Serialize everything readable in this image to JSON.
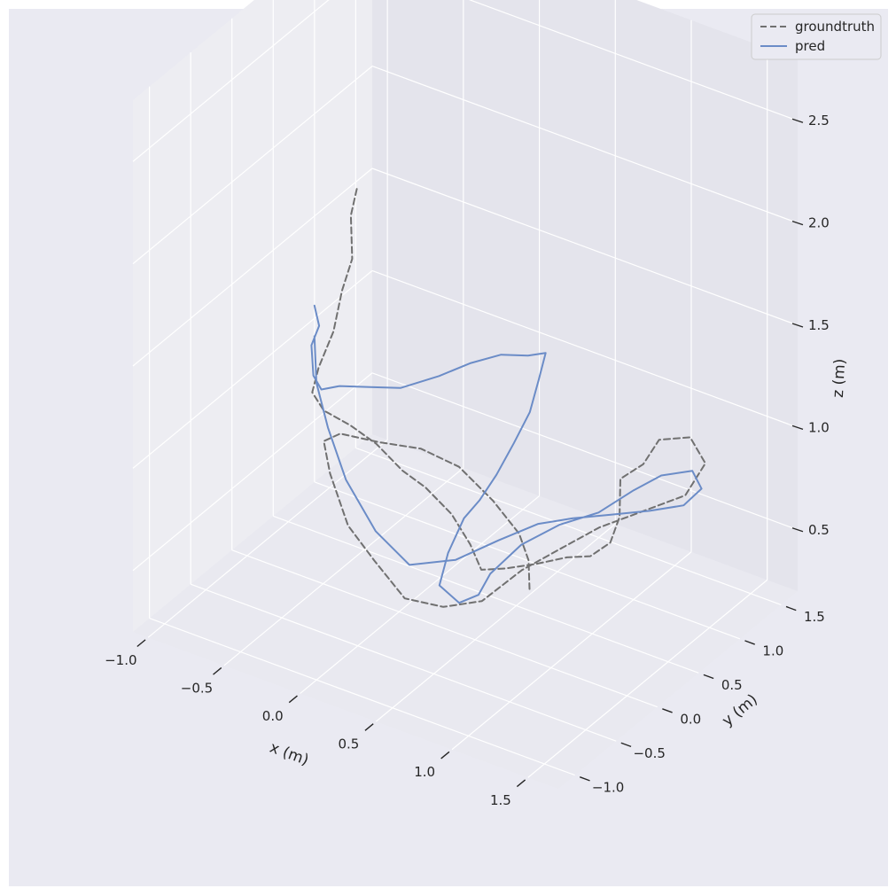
{
  "chart_data": {
    "type": "line",
    "projection": "3d",
    "title": "",
    "xlabel": "x (m)",
    "ylabel": "y (m)",
    "zlabel": "z (m)",
    "xlim": [
      -1.1,
      1.7
    ],
    "ylim": [
      -1.2,
      1.7
    ],
    "zlim": [
      0.2,
      2.8
    ],
    "x_ticks": [
      -1.0,
      -0.5,
      0.0,
      0.5,
      1.0,
      1.5
    ],
    "y_ticks": [
      -1.0,
      -0.5,
      0.0,
      0.5,
      1.0,
      1.5
    ],
    "z_ticks": [
      0.5,
      1.0,
      1.5,
      2.0,
      2.5
    ],
    "x_tick_labels": [
      "−1.0",
      "−0.5",
      "0.0",
      "0.5",
      "1.0",
      "1.5"
    ],
    "y_tick_labels": [
      "−1.0",
      "−0.5",
      "0.0",
      "0.5",
      "1.0",
      "1.5"
    ],
    "z_tick_labels": [
      "0.5",
      "1.0",
      "1.5",
      "2.0",
      "2.5"
    ],
    "grid": true,
    "legend": "top-right",
    "colors": {
      "figure_bg": "#eaeaf2",
      "pane_left": "#ededf2",
      "pane_back": "#e4e4ec",
      "pane_floor": "#e9e9f0",
      "grid": "#ffffff",
      "groundtruth": "#707070",
      "pred": "#6b8cc7"
    },
    "series": [
      {
        "name": "groundtruth",
        "style": "dashed",
        "points": [
          [
            -0.55,
            0.5,
            1.95
          ],
          [
            -0.6,
            0.52,
            1.8
          ],
          [
            -0.58,
            0.5,
            1.6
          ],
          [
            -0.62,
            0.45,
            1.45
          ],
          [
            -0.66,
            0.42,
            1.25
          ],
          [
            -0.72,
            0.35,
            1.08
          ],
          [
            -0.68,
            0.2,
            1.02
          ],
          [
            -0.55,
            0.1,
            1.0
          ],
          [
            -0.35,
            0.05,
            1.0
          ],
          [
            -0.15,
            0.0,
            0.98
          ],
          [
            0.05,
            -0.05,
            0.92
          ],
          [
            0.2,
            -0.05,
            0.88
          ],
          [
            0.4,
            -0.1,
            0.82
          ],
          [
            0.55,
            -0.15,
            0.73
          ],
          [
            0.65,
            -0.2,
            0.65
          ],
          [
            0.75,
            -0.1,
            0.65
          ],
          [
            0.9,
            0.0,
            0.68
          ],
          [
            1.05,
            0.1,
            0.72
          ],
          [
            1.15,
            0.2,
            0.72
          ],
          [
            1.2,
            0.35,
            0.75
          ],
          [
            1.18,
            0.5,
            0.82
          ],
          [
            1.12,
            0.62,
            0.95
          ],
          [
            1.2,
            0.75,
            1.0
          ],
          [
            1.25,
            0.85,
            1.1
          ],
          [
            1.4,
            0.95,
            1.12
          ],
          [
            1.5,
            0.95,
            1.02
          ],
          [
            1.45,
            0.8,
            0.9
          ],
          [
            1.3,
            0.62,
            0.85
          ],
          [
            1.1,
            0.4,
            0.78
          ],
          [
            0.95,
            0.2,
            0.7
          ],
          [
            0.78,
            0.05,
            0.6
          ],
          [
            0.6,
            -0.1,
            0.45
          ],
          [
            0.4,
            -0.2,
            0.4
          ],
          [
            0.2,
            -0.3,
            0.42
          ],
          [
            0.0,
            -0.3,
            0.55
          ],
          [
            -0.2,
            -0.25,
            0.65
          ],
          [
            -0.4,
            -0.1,
            0.8
          ],
          [
            -0.55,
            0.1,
            0.85
          ],
          [
            -0.55,
            0.3,
            0.82
          ],
          [
            -0.35,
            0.4,
            0.8
          ],
          [
            -0.1,
            0.45,
            0.82
          ],
          [
            0.15,
            0.45,
            0.8
          ],
          [
            0.4,
            0.4,
            0.72
          ],
          [
            0.6,
            0.35,
            0.63
          ],
          [
            0.7,
            0.28,
            0.55
          ],
          [
            0.75,
            0.2,
            0.45
          ]
        ]
      },
      {
        "name": "pred",
        "style": "solid",
        "points": [
          [
            -0.72,
            0.3,
            1.4
          ],
          [
            -0.7,
            0.32,
            1.3
          ],
          [
            -0.74,
            0.3,
            1.2
          ],
          [
            -0.7,
            0.25,
            1.08
          ],
          [
            -0.62,
            0.2,
            1.05
          ],
          [
            -0.5,
            0.2,
            1.1
          ],
          [
            -0.3,
            0.2,
            1.15
          ],
          [
            -0.1,
            0.2,
            1.2
          ],
          [
            0.1,
            0.3,
            1.28
          ],
          [
            0.25,
            0.4,
            1.35
          ],
          [
            0.4,
            0.5,
            1.4
          ],
          [
            0.55,
            0.55,
            1.42
          ],
          [
            0.65,
            0.58,
            1.45
          ],
          [
            0.62,
            0.55,
            1.32
          ],
          [
            0.6,
            0.48,
            1.18
          ],
          [
            0.55,
            0.38,
            1.05
          ],
          [
            0.5,
            0.26,
            0.92
          ],
          [
            0.45,
            0.15,
            0.82
          ],
          [
            0.4,
            0.05,
            0.75
          ],
          [
            0.35,
            -0.05,
            0.6
          ],
          [
            0.32,
            -0.1,
            0.45
          ],
          [
            0.45,
            -0.1,
            0.4
          ],
          [
            0.55,
            -0.05,
            0.45
          ],
          [
            0.6,
            0.0,
            0.55
          ],
          [
            0.75,
            0.1,
            0.7
          ],
          [
            0.95,
            0.2,
            0.82
          ],
          [
            1.15,
            0.3,
            0.9
          ],
          [
            1.3,
            0.45,
            1.0
          ],
          [
            1.4,
            0.6,
            1.05
          ],
          [
            1.55,
            0.7,
            1.08
          ],
          [
            1.6,
            0.72,
            1.0
          ],
          [
            1.52,
            0.65,
            0.92
          ],
          [
            1.35,
            0.55,
            0.88
          ],
          [
            1.15,
            0.45,
            0.84
          ],
          [
            0.95,
            0.35,
            0.8
          ],
          [
            0.78,
            0.25,
            0.76
          ],
          [
            0.6,
            0.1,
            0.68
          ],
          [
            0.4,
            -0.05,
            0.58
          ],
          [
            0.15,
            -0.15,
            0.52
          ],
          [
            -0.1,
            -0.1,
            0.6
          ],
          [
            -0.35,
            0.0,
            0.75
          ],
          [
            -0.55,
            0.15,
            0.9
          ],
          [
            -0.68,
            0.25,
            1.05
          ],
          [
            -0.72,
            0.3,
            1.25
          ]
        ]
      }
    ]
  }
}
